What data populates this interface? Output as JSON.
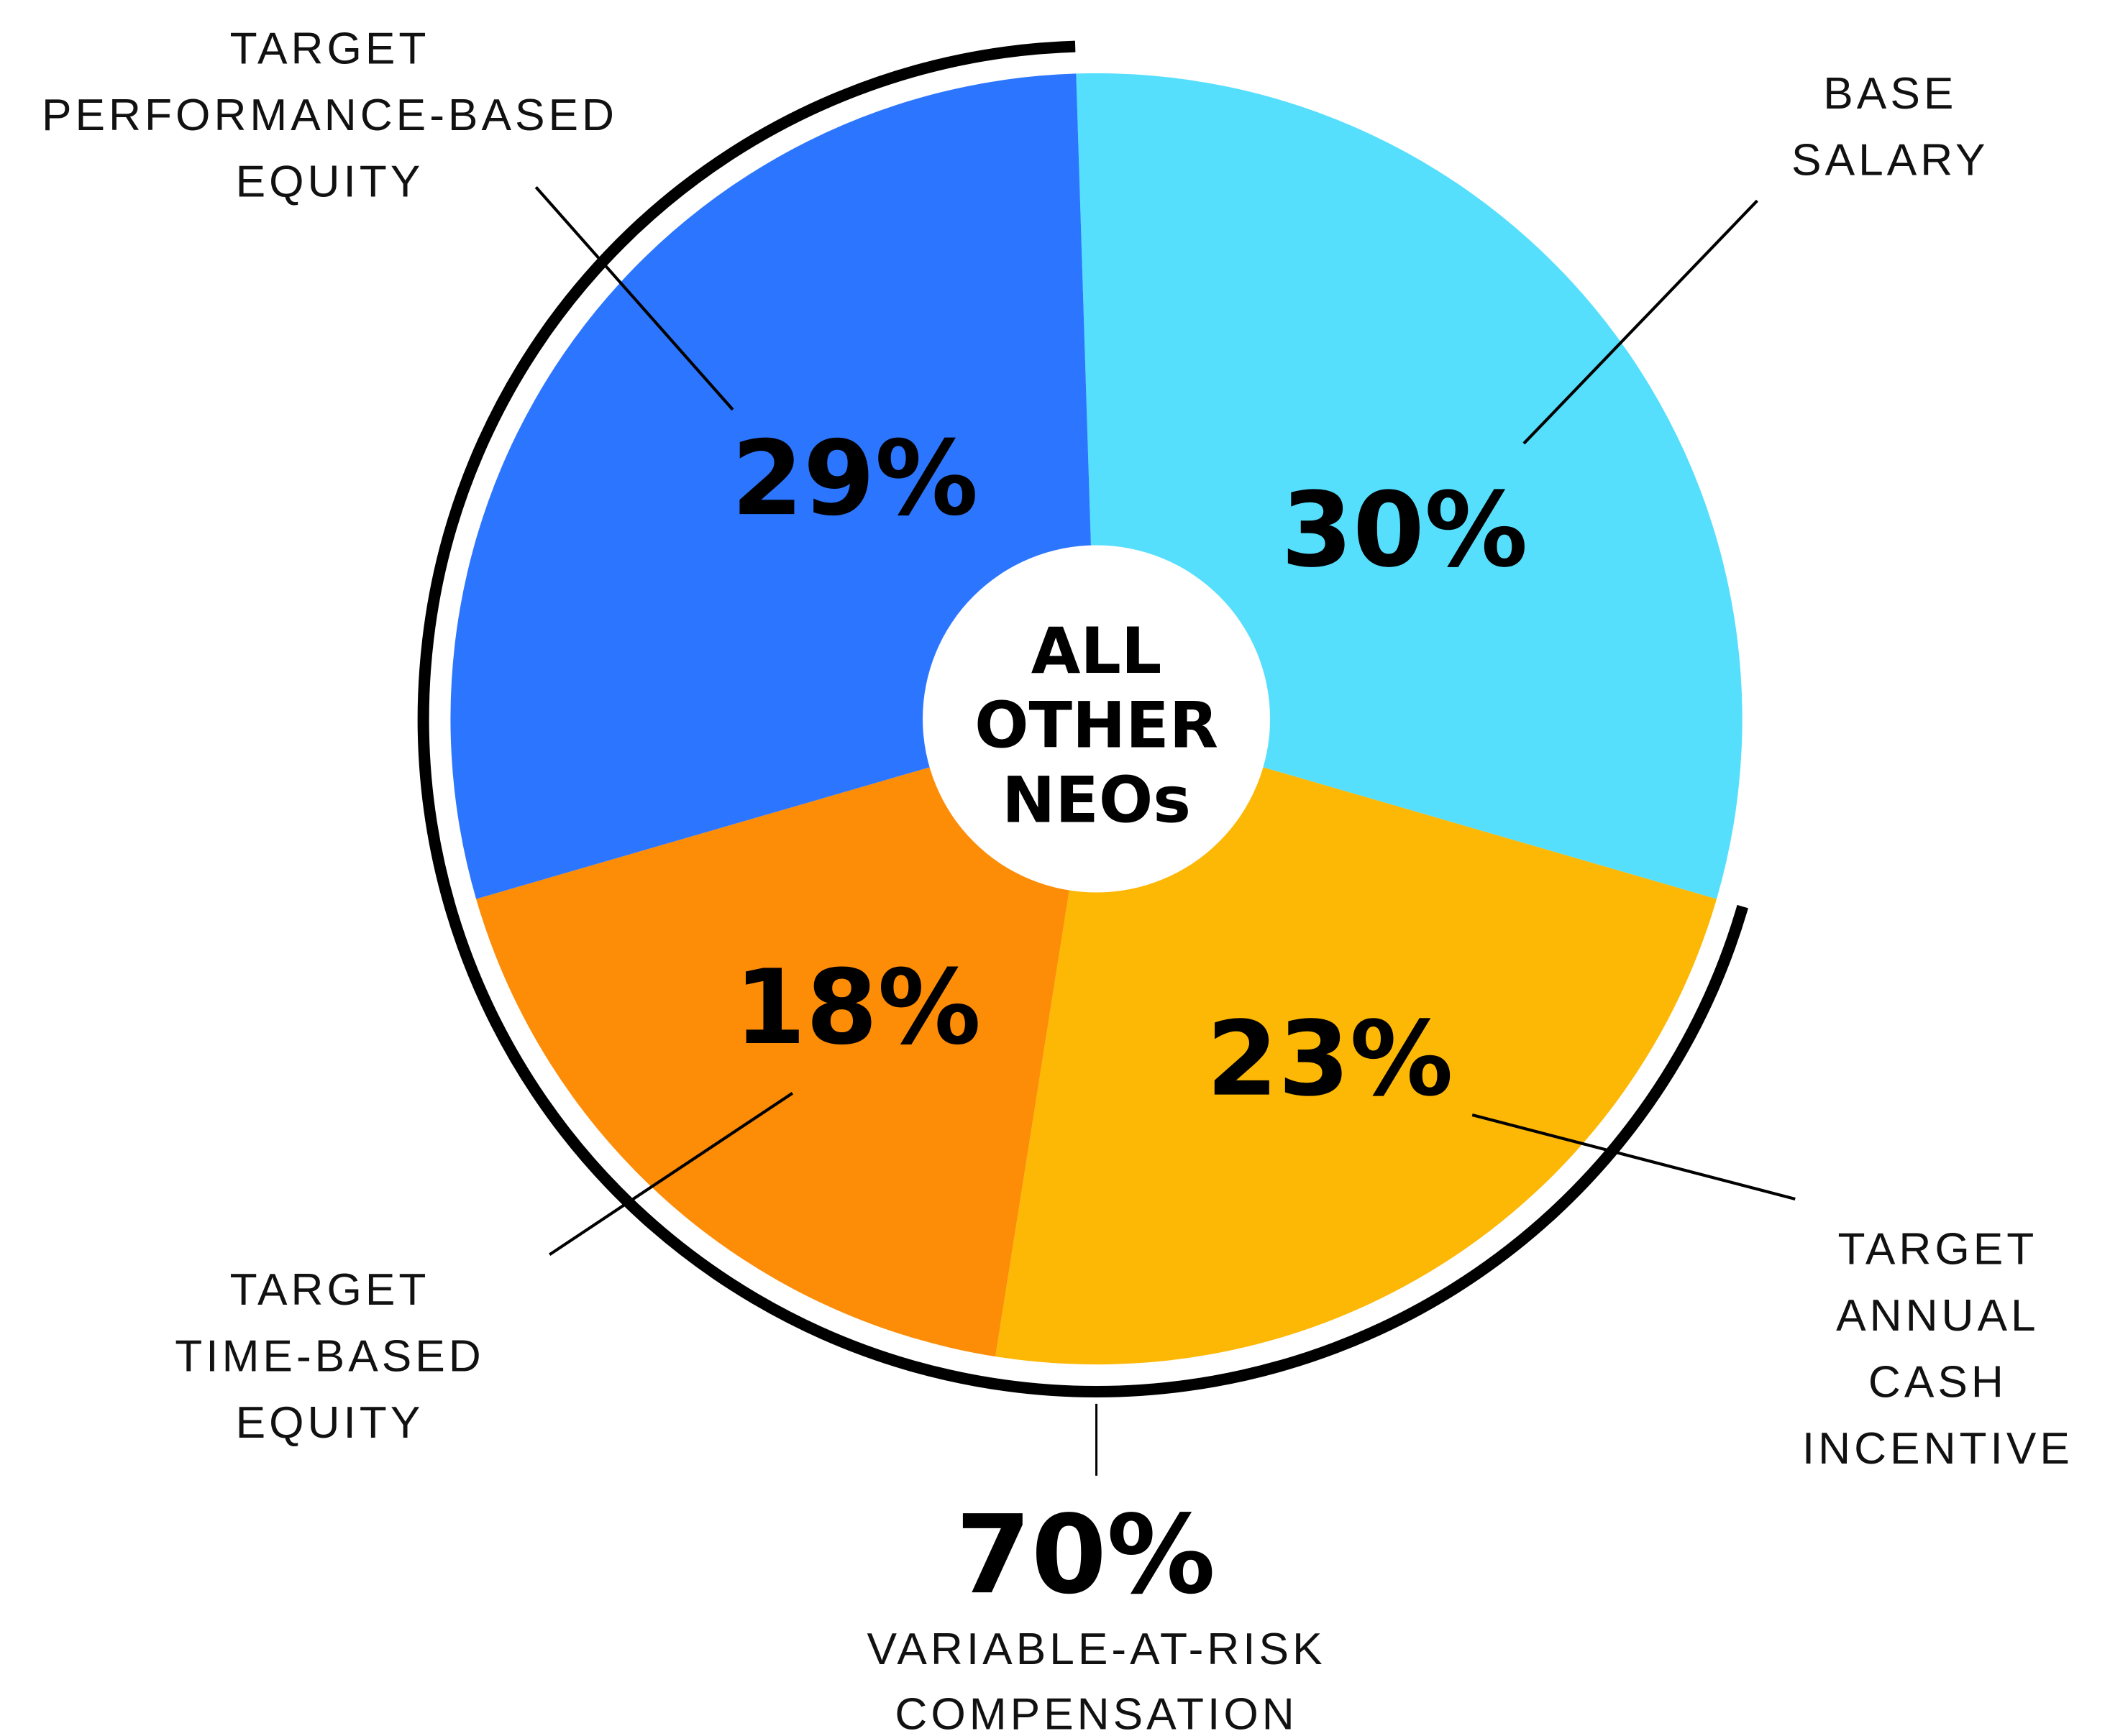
{
  "chart_data": {
    "type": "pie",
    "center_label": [
      "ALL",
      "OTHER",
      "NEOs"
    ],
    "slices": [
      {
        "key": "base",
        "label": [
          "BASE",
          "SALARY"
        ],
        "value": 30,
        "display": "30%",
        "color": "#55DFFD"
      },
      {
        "key": "annual",
        "label": [
          "TARGET",
          "ANNUAL",
          "CASH",
          "INCENTIVE"
        ],
        "value": 23,
        "display": "23%",
        "color": "#FDB705"
      },
      {
        "key": "time",
        "label": [
          "TARGET",
          "TIME-BASED",
          "EQUITY"
        ],
        "value": 18,
        "display": "18%",
        "color": "#FD8C07"
      },
      {
        "key": "perf",
        "label": [
          "TARGET",
          "PERFORMANCE-BASED",
          "EQUITY"
        ],
        "value": 29,
        "display": "29%",
        "color": "#2C76FF"
      }
    ],
    "variable_summary": {
      "display": "70%",
      "label": [
        "VARIABLE-AT-RISK",
        "COMPENSATION"
      ],
      "covers": [
        "annual",
        "time",
        "perf"
      ]
    }
  }
}
